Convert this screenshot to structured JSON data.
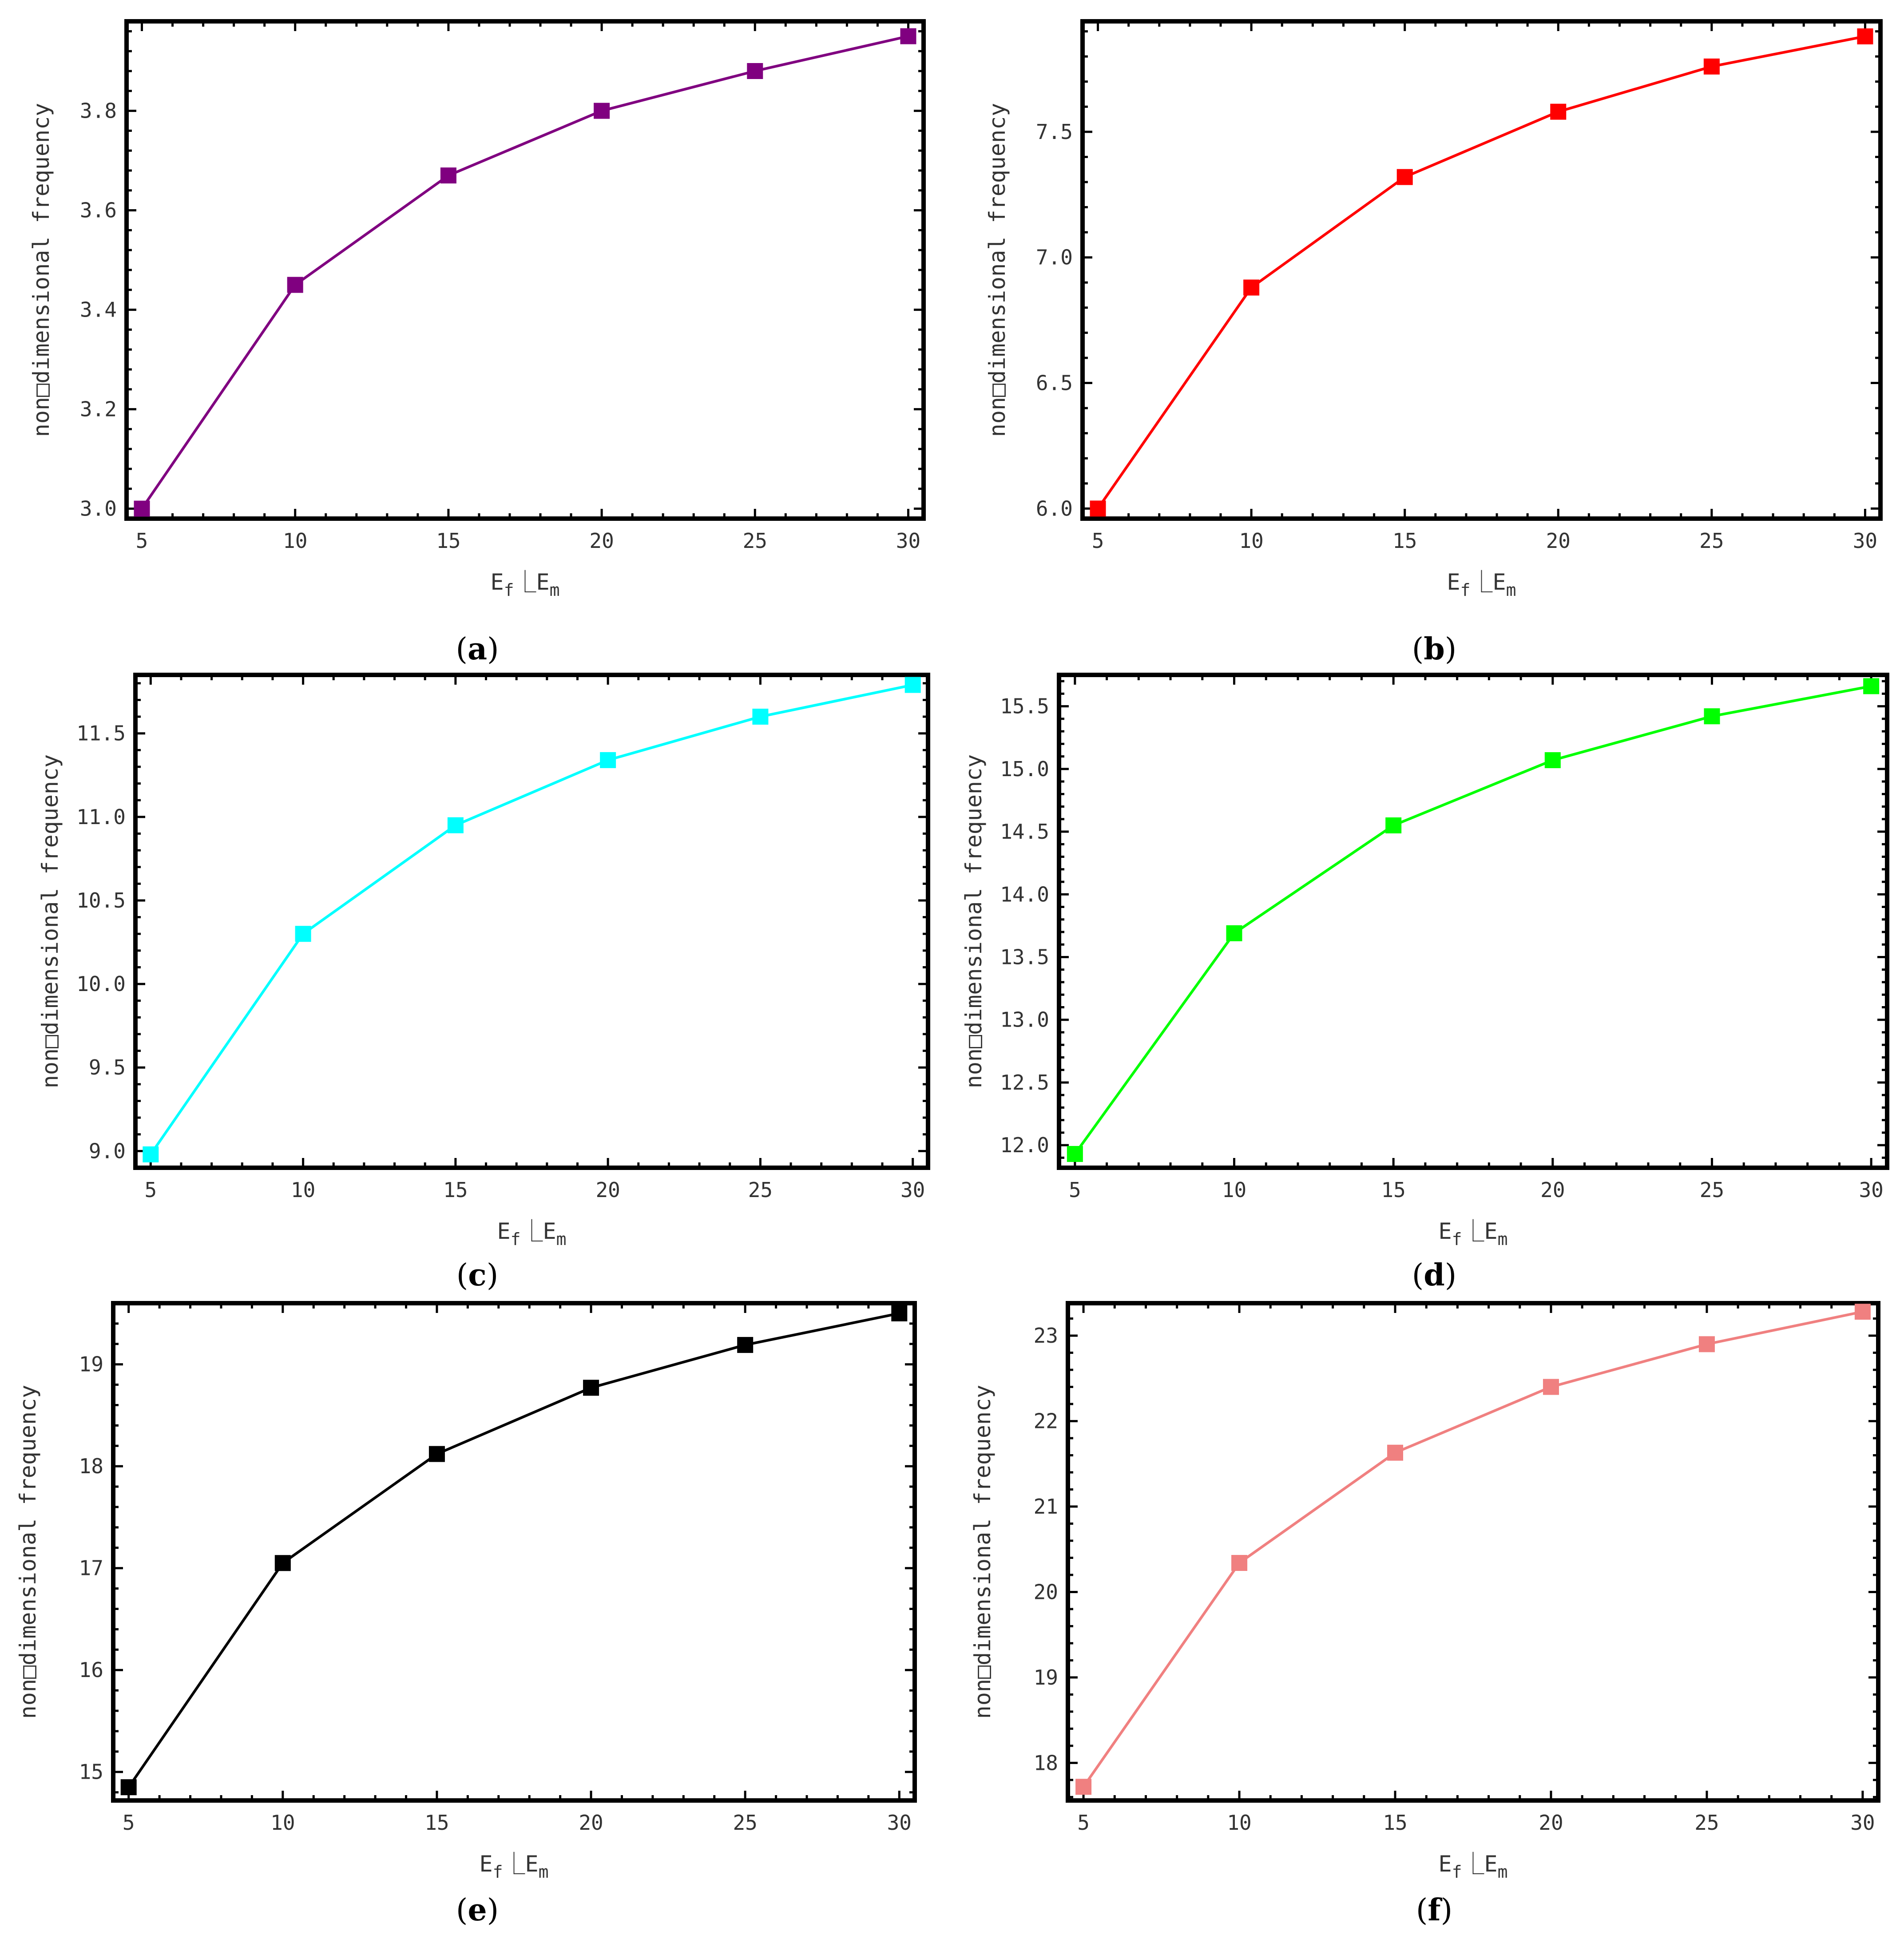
{
  "figure": {
    "panels": [
      {
        "caption_letter": "a",
        "color": "#800080"
      },
      {
        "caption_letter": "b",
        "color": "#ff0000"
      },
      {
        "caption_letter": "c",
        "color": "#00ffff"
      },
      {
        "caption_letter": "d",
        "color": "#00ff00"
      },
      {
        "caption_letter": "e",
        "color": "#000000"
      },
      {
        "caption_letter": "f",
        "color": "#f08080"
      }
    ]
  },
  "chart_data": [
    {
      "type": "line",
      "panel": "a",
      "xlabel": "Ef⎿Em",
      "ylabel": "non□dimensional frequency",
      "x": [
        5,
        10,
        15,
        20,
        25,
        30
      ],
      "series": [
        {
          "values": [
            3.0,
            3.45,
            3.67,
            3.8,
            3.88,
            3.95
          ],
          "color": "#800080",
          "marker": "square"
        }
      ],
      "xlim": [
        4.5,
        30.5
      ],
      "ylim": [
        2.98,
        3.98
      ],
      "xticks": [
        5,
        10,
        15,
        20,
        25,
        30
      ],
      "yticks": [
        "3.0",
        "3.2",
        "3.4",
        "3.6",
        "3.8"
      ],
      "grid": false
    },
    {
      "type": "line",
      "panel": "b",
      "xlabel": "Ef⎿Em",
      "ylabel": "non□dimensional frequency",
      "x": [
        5,
        10,
        15,
        20,
        25,
        30
      ],
      "series": [
        {
          "values": [
            6.0,
            6.88,
            7.32,
            7.58,
            7.76,
            7.88
          ],
          "color": "#ff0000",
          "marker": "square"
        }
      ],
      "xlim": [
        4.5,
        30.5
      ],
      "ylim": [
        5.96,
        7.94
      ],
      "xticks": [
        5,
        10,
        15,
        20,
        25,
        30
      ],
      "yticks": [
        "6.0",
        "6.5",
        "7.0",
        "7.5"
      ],
      "grid": false
    },
    {
      "type": "line",
      "panel": "c",
      "xlabel": "Ef⎿Em",
      "ylabel": "non□dimensional frequency",
      "x": [
        5,
        10,
        15,
        20,
        25,
        30
      ],
      "series": [
        {
          "values": [
            8.98,
            10.3,
            10.95,
            11.34,
            11.6,
            11.79
          ],
          "color": "#00ffff",
          "marker": "square"
        }
      ],
      "xlim": [
        4.5,
        30.5
      ],
      "ylim": [
        8.9,
        11.85
      ],
      "xticks": [
        5,
        10,
        15,
        20,
        25,
        30
      ],
      "yticks": [
        "9.0",
        "9.5",
        "10.0",
        "10.5",
        "11.0",
        "11.5"
      ],
      "grid": false
    },
    {
      "type": "line",
      "panel": "d",
      "xlabel": "Ef⎿Em",
      "ylabel": "non□dimensional frequency",
      "x": [
        5,
        10,
        15,
        20,
        25,
        30
      ],
      "series": [
        {
          "values": [
            11.93,
            13.69,
            14.55,
            15.07,
            15.42,
            15.66
          ],
          "color": "#00ff00",
          "marker": "square"
        }
      ],
      "xlim": [
        4.5,
        30.5
      ],
      "ylim": [
        11.82,
        15.75
      ],
      "xticks": [
        5,
        10,
        15,
        20,
        25,
        30
      ],
      "yticks": [
        "12.0",
        "12.5",
        "13.0",
        "13.5",
        "14.0",
        "14.5",
        "15.0",
        "15.5"
      ],
      "grid": false
    },
    {
      "type": "line",
      "panel": "e",
      "xlabel": "Ef⎿Em",
      "ylabel": "non□dimensional frequency",
      "x": [
        5,
        10,
        15,
        20,
        25,
        30
      ],
      "series": [
        {
          "values": [
            14.85,
            17.05,
            18.12,
            18.77,
            19.19,
            19.5
          ],
          "color": "#000000",
          "marker": "square"
        }
      ],
      "xlim": [
        4.5,
        30.5
      ],
      "ylim": [
        14.72,
        19.6
      ],
      "xticks": [
        5,
        10,
        15,
        20,
        25,
        30
      ],
      "yticks": [
        "15",
        "16",
        "17",
        "18",
        "19"
      ],
      "grid": false
    },
    {
      "type": "line",
      "panel": "f",
      "xlabel": "Ef⎿Em",
      "ylabel": "non□dimensional frequency",
      "x": [
        5,
        10,
        15,
        20,
        25,
        30
      ],
      "series": [
        {
          "values": [
            17.72,
            20.34,
            21.63,
            22.4,
            22.9,
            23.28
          ],
          "color": "#f08080",
          "marker": "square"
        }
      ],
      "xlim": [
        4.5,
        30.5
      ],
      "ylim": [
        17.56,
        23.38
      ],
      "xticks": [
        5,
        10,
        15,
        20,
        25,
        30
      ],
      "yticks": [
        "18",
        "19",
        "20",
        "21",
        "22",
        "23"
      ],
      "grid": false
    }
  ]
}
